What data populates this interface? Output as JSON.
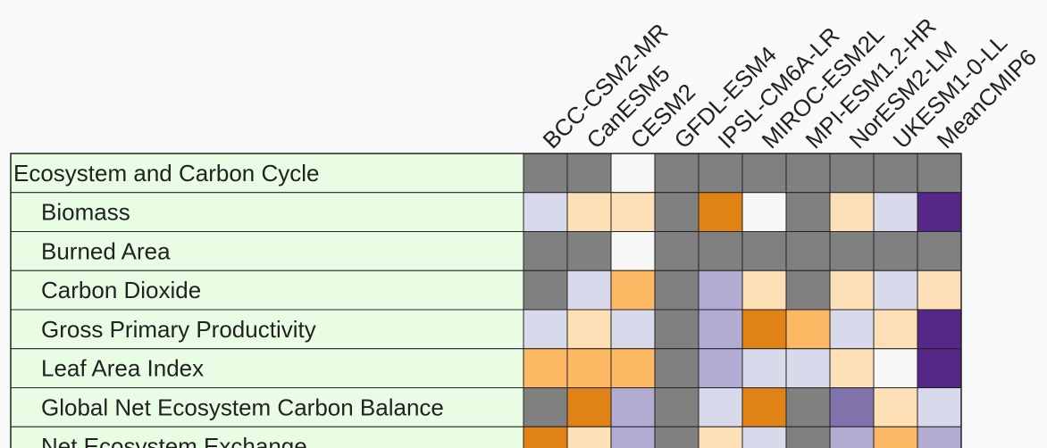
{
  "chart_data": {
    "type": "heatmap",
    "columns": [
      "BCC-CSM2-MR",
      "CanESM5",
      "CESM2",
      "GFDL-ESM4",
      "IPSL-CM6A-LR",
      "MIROC-ESM2L",
      "MPI-ESM1.2-HR",
      "NorESM2-LM",
      "UKESM1-0-LL",
      "MeanCMIP6"
    ],
    "rows": [
      {
        "label": "Ecosystem and Carbon Cycle",
        "header": true
      },
      {
        "label": "Biomass",
        "header": false
      },
      {
        "label": "Burned Area",
        "header": false
      },
      {
        "label": "Carbon Dioxide",
        "header": false
      },
      {
        "label": "Gross Primary Productivity",
        "header": false
      },
      {
        "label": "Leaf Area Index",
        "header": false
      },
      {
        "label": "Global Net Ecosystem Carbon Balance",
        "header": false
      },
      {
        "label": "Net Ecosystem Exchange",
        "header": false
      }
    ],
    "cells": [
      [
        "na",
        "na",
        "lightest",
        "na",
        "na",
        "na",
        "na",
        "na",
        "na",
        "na"
      ],
      [
        "lav1",
        "or1",
        "or1",
        "na",
        "or3",
        "lightest",
        "na",
        "or1",
        "lav1",
        "pur4"
      ],
      [
        "na",
        "na",
        "lightest",
        "na",
        "na",
        "na",
        "na",
        "na",
        "na",
        "na"
      ],
      [
        "na",
        "lav1",
        "or2",
        "na",
        "lav2",
        "or1",
        "na",
        "or1",
        "lav1",
        "or1"
      ],
      [
        "lav1",
        "or1",
        "lav1",
        "na",
        "lav2",
        "or3",
        "or2",
        "lav1",
        "or1",
        "pur4"
      ],
      [
        "or2",
        "or2",
        "or2",
        "na",
        "lav2",
        "lav1",
        "lav1",
        "or1",
        "lightest",
        "pur4"
      ],
      [
        "na",
        "or3",
        "lav2",
        "na",
        "lav1",
        "or3",
        "na",
        "lav3",
        "or1",
        "lav1"
      ],
      [
        "or3",
        "or1",
        "lav2",
        "na",
        "or1",
        "lav1",
        "na",
        "lav2",
        "or2",
        "lav2"
      ]
    ],
    "colors": {
      "na": "#808080",
      "lightest": "#f7f7f7",
      "or1": "#fee0b6",
      "or2": "#fdb863",
      "or3": "#e08214",
      "lav1": "#d8daeb",
      "lav2": "#b2abd2",
      "lav3": "#8073ac",
      "pur4": "#542788",
      "row_bg": "#e9fde4",
      "grid": "#222222"
    }
  }
}
